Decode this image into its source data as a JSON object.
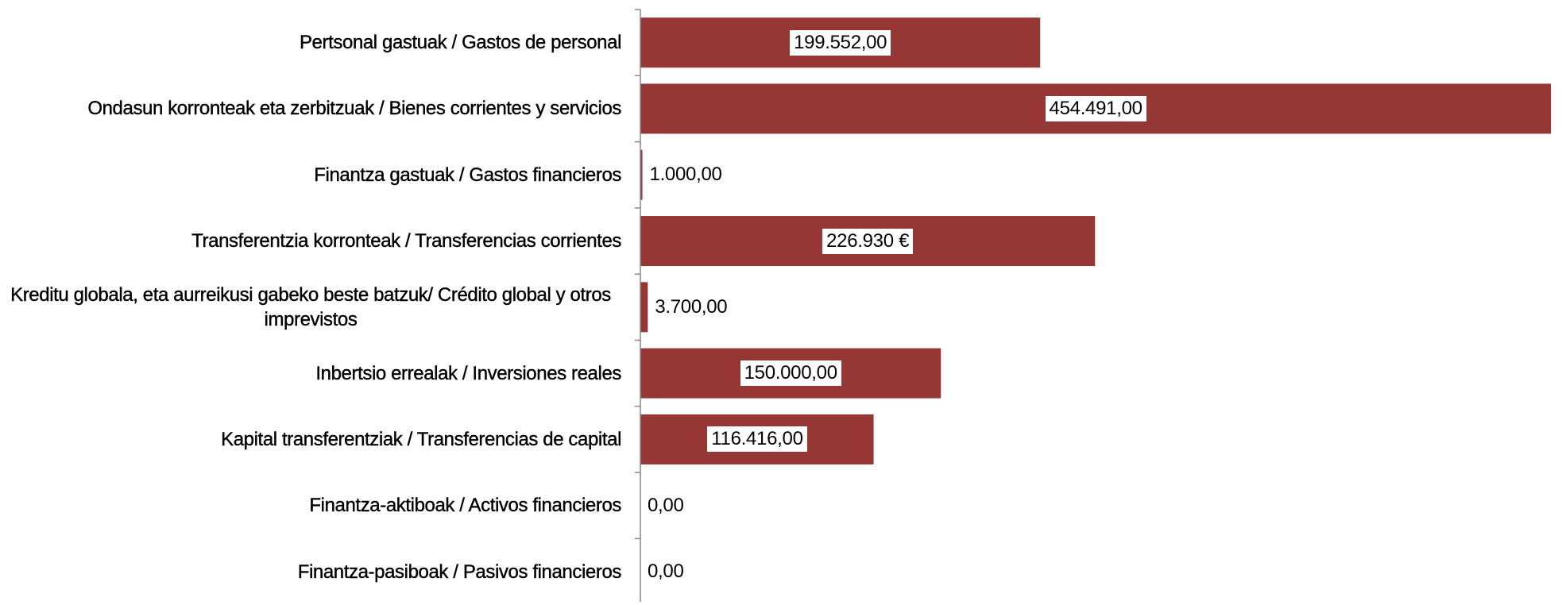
{
  "chart_data": {
    "type": "bar",
    "orientation": "horizontal",
    "categories": [
      "Pertsonal gastuak / Gastos de personal",
      "Ondasun korronteak eta zerbitzuak / Bienes corrientes y servicios",
      "Finantza gastuak / Gastos financieros",
      "Transferentzia korronteak / Transferencias corrientes",
      "Kreditu globala, eta aurreikusi gabeko beste batzuk/ Crédito global y otros imprevistos",
      "Inbertsio errealak / Inversiones reales",
      "Kapital transferentziak / Transferencias de capital",
      "Finantza-aktiboak / Activos financieros",
      "Finantza-pasiboak / Pasivos financieros"
    ],
    "values": [
      199552,
      454491,
      1000,
      226930,
      3700,
      150000,
      116416,
      0,
      0
    ],
    "value_labels": [
      "199.552,00",
      "454.491,00",
      "1.000,00",
      "226.930 €",
      "3.700,00",
      "150.000,00",
      "116.416,00",
      "0,00",
      "0,00"
    ],
    "color": "#953735",
    "xlim": [
      0,
      460000
    ]
  }
}
